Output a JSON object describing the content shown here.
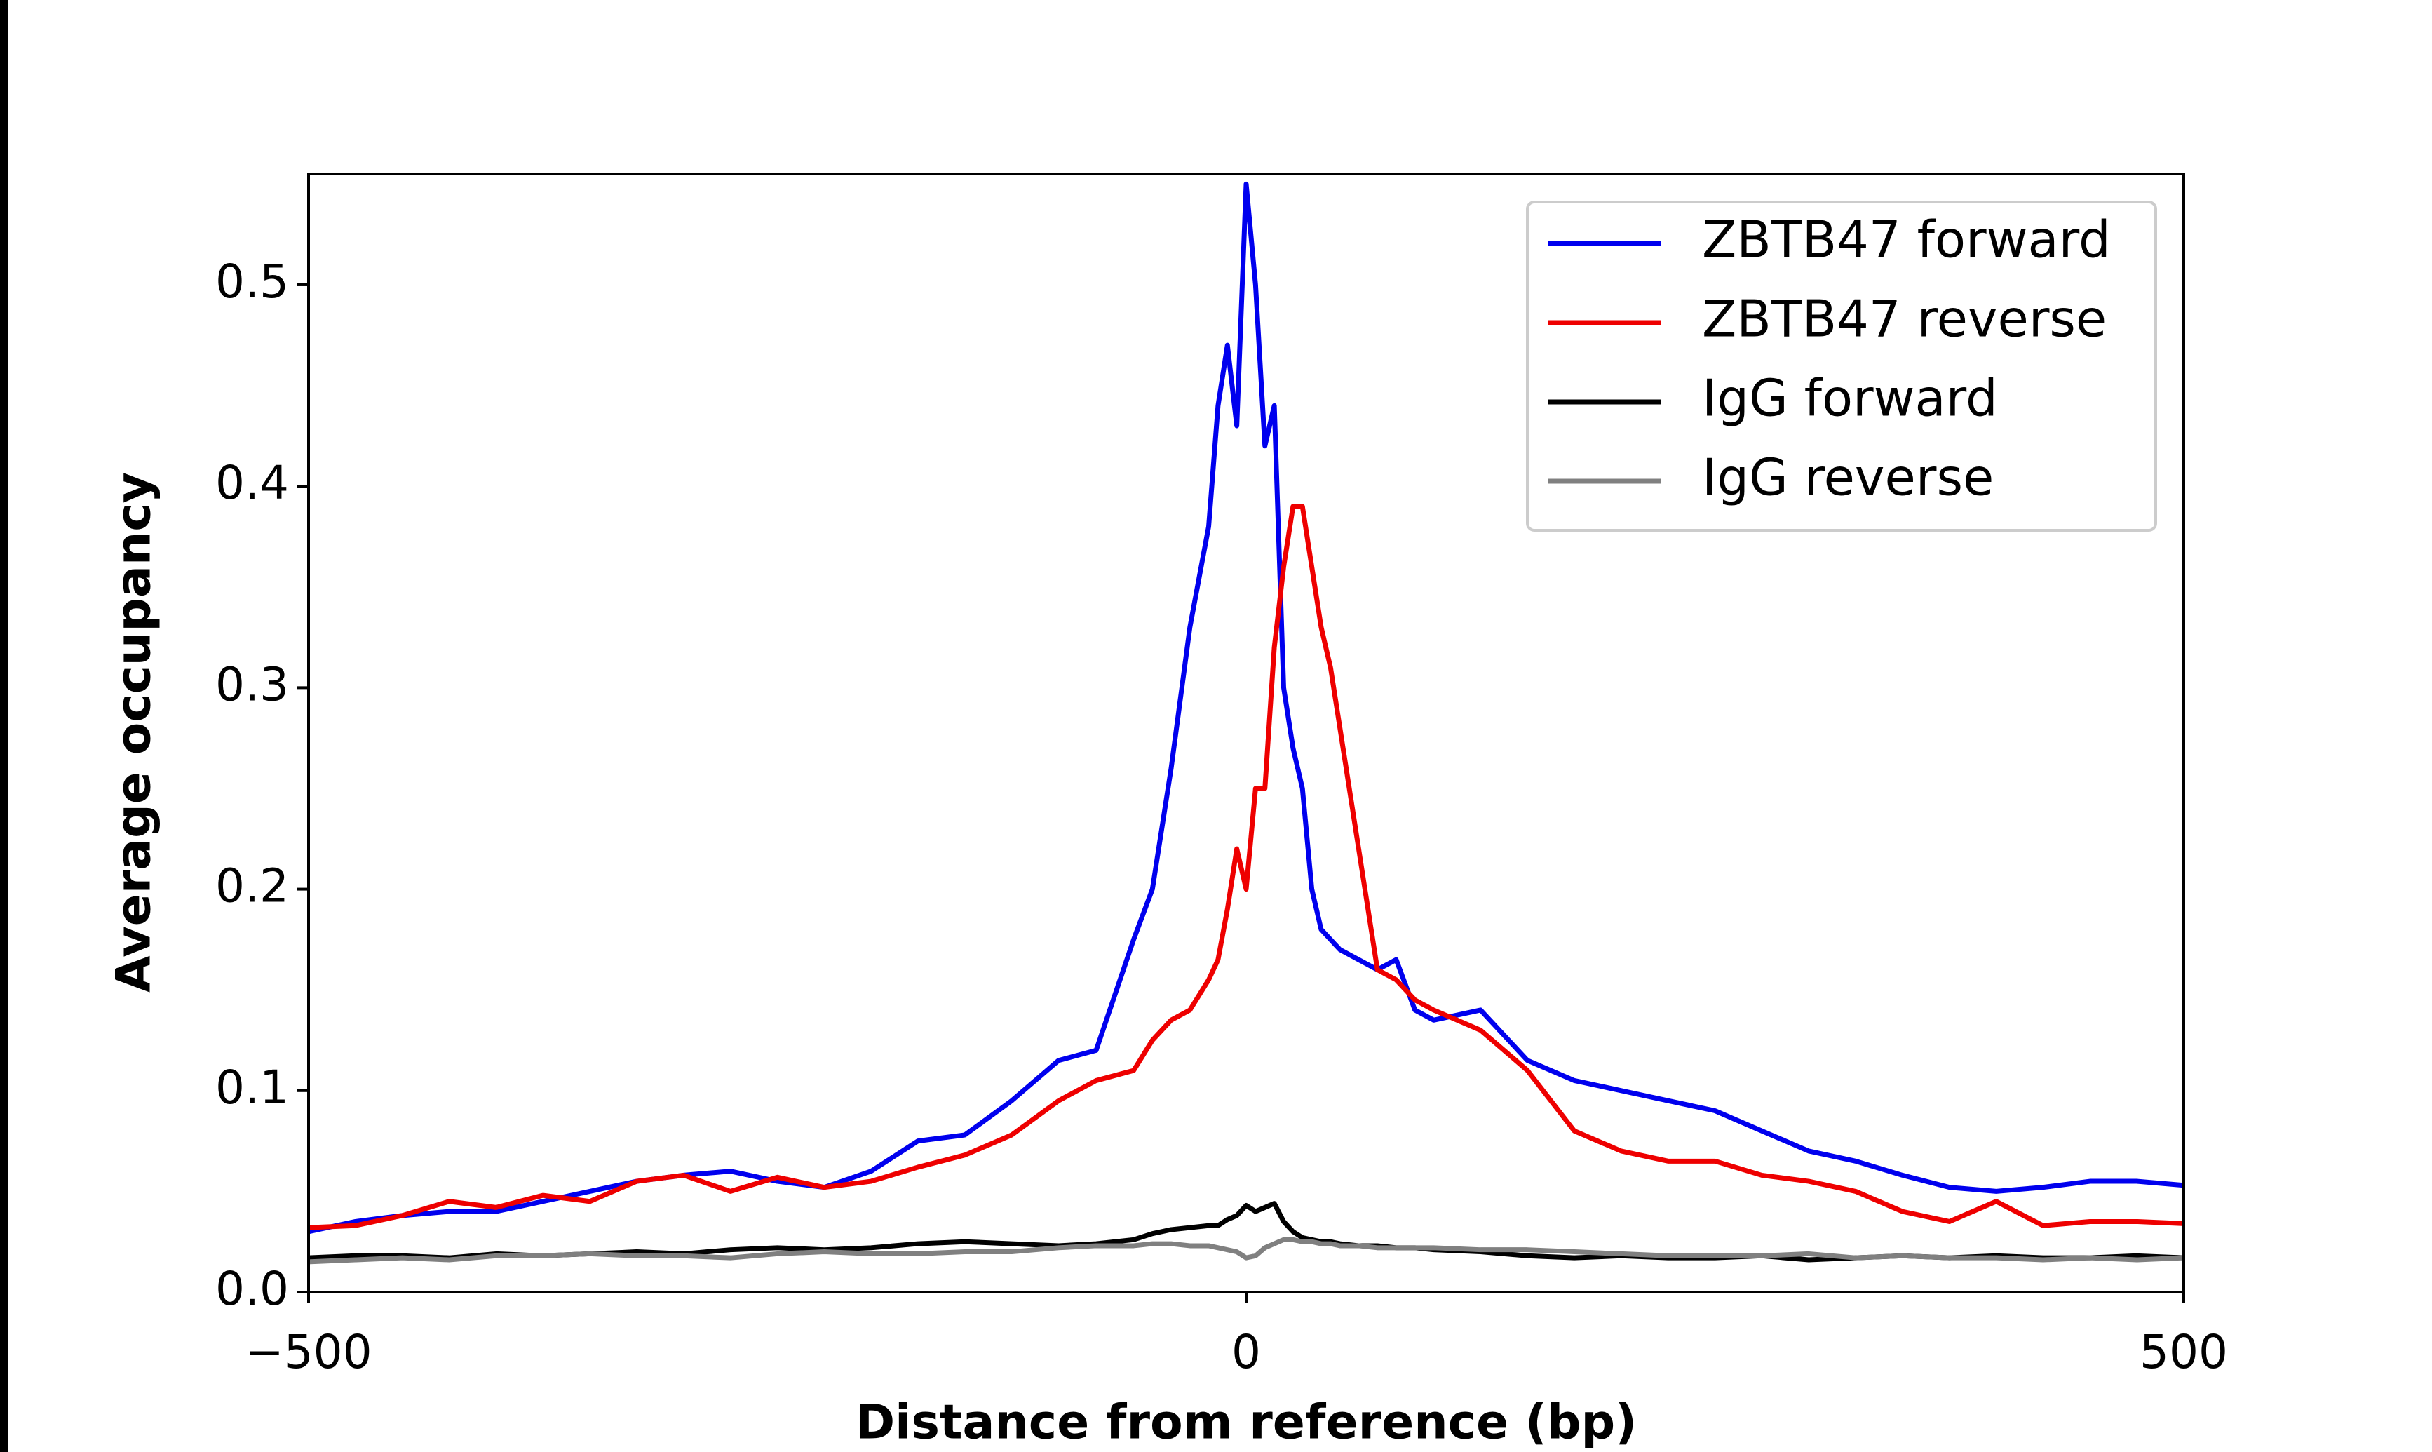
{
  "chart_data": {
    "type": "line",
    "xlabel": "Distance from reference (bp)",
    "ylabel": "Average occupancy",
    "xlim": [
      -500,
      500
    ],
    "ylim": [
      0,
      0.555
    ],
    "xticks": [
      {
        "value": -500,
        "label": "−500"
      },
      0,
      500
    ],
    "yticks": [
      {
        "value": 0,
        "label": "0.0"
      },
      0.1,
      0.2,
      0.3,
      0.4,
      0.5
    ],
    "grid": false,
    "legend": "upper right",
    "x": [
      -500,
      -475,
      -450,
      -425,
      -400,
      -375,
      -350,
      -325,
      -300,
      -275,
      -250,
      -225,
      -200,
      -175,
      -150,
      -125,
      -100,
      -80,
      -60,
      -50,
      -40,
      -30,
      -20,
      -15,
      -10,
      -5,
      0,
      5,
      10,
      15,
      20,
      25,
      30,
      35,
      40,
      45,
      50,
      60,
      70,
      80,
      90,
      100,
      125,
      150,
      175,
      200,
      225,
      250,
      275,
      300,
      325,
      350,
      375,
      400,
      425,
      450,
      475,
      500
    ],
    "series": [
      {
        "name": "ZBTB47 forward",
        "color": "#0000ee",
        "values": [
          0.03,
          0.035,
          0.038,
          0.04,
          0.04,
          0.045,
          0.05,
          0.055,
          0.058,
          0.06,
          0.055,
          0.052,
          0.06,
          0.075,
          0.078,
          0.095,
          0.115,
          0.12,
          0.175,
          0.2,
          0.26,
          0.33,
          0.38,
          0.44,
          0.47,
          0.43,
          0.55,
          0.5,
          0.42,
          0.44,
          0.3,
          0.27,
          0.25,
          0.2,
          0.18,
          0.175,
          0.17,
          0.165,
          0.16,
          0.165,
          0.14,
          0.135,
          0.14,
          0.115,
          0.105,
          0.1,
          0.095,
          0.09,
          0.08,
          0.07,
          0.065,
          0.058,
          0.052,
          0.05,
          0.052,
          0.055,
          0.055,
          0.053
        ]
      },
      {
        "name": "ZBTB47 reverse",
        "color": "#ee0000",
        "values": [
          0.032,
          0.033,
          0.038,
          0.045,
          0.042,
          0.048,
          0.045,
          0.055,
          0.058,
          0.05,
          0.057,
          0.052,
          0.055,
          0.062,
          0.068,
          0.078,
          0.095,
          0.105,
          0.11,
          0.125,
          0.135,
          0.14,
          0.155,
          0.165,
          0.19,
          0.22,
          0.2,
          0.25,
          0.25,
          0.32,
          0.36,
          0.39,
          0.39,
          0.36,
          0.33,
          0.31,
          0.28,
          0.22,
          0.16,
          0.155,
          0.145,
          0.14,
          0.13,
          0.11,
          0.08,
          0.07,
          0.065,
          0.065,
          0.058,
          0.055,
          0.05,
          0.04,
          0.035,
          0.045,
          0.033,
          0.035,
          0.035,
          0.034
        ]
      },
      {
        "name": "IgG forward",
        "color": "#000000",
        "values": [
          0.017,
          0.018,
          0.018,
          0.017,
          0.019,
          0.018,
          0.019,
          0.02,
          0.019,
          0.021,
          0.022,
          0.021,
          0.022,
          0.024,
          0.025,
          0.024,
          0.023,
          0.024,
          0.026,
          0.029,
          0.031,
          0.032,
          0.033,
          0.033,
          0.036,
          0.038,
          0.043,
          0.04,
          0.042,
          0.044,
          0.035,
          0.03,
          0.027,
          0.026,
          0.025,
          0.025,
          0.024,
          0.023,
          0.023,
          0.022,
          0.022,
          0.021,
          0.02,
          0.018,
          0.017,
          0.018,
          0.017,
          0.017,
          0.018,
          0.016,
          0.017,
          0.018,
          0.017,
          0.018,
          0.017,
          0.017,
          0.018,
          0.017
        ]
      },
      {
        "name": "IgG reverse",
        "color": "#808080",
        "values": [
          0.015,
          0.016,
          0.017,
          0.016,
          0.018,
          0.018,
          0.019,
          0.018,
          0.018,
          0.017,
          0.019,
          0.02,
          0.019,
          0.019,
          0.02,
          0.02,
          0.022,
          0.023,
          0.023,
          0.024,
          0.024,
          0.023,
          0.023,
          0.022,
          0.021,
          0.02,
          0.017,
          0.018,
          0.022,
          0.024,
          0.026,
          0.026,
          0.025,
          0.025,
          0.024,
          0.024,
          0.023,
          0.023,
          0.022,
          0.022,
          0.022,
          0.022,
          0.021,
          0.021,
          0.02,
          0.019,
          0.018,
          0.018,
          0.018,
          0.019,
          0.017,
          0.018,
          0.017,
          0.017,
          0.016,
          0.017,
          0.016,
          0.017
        ]
      }
    ]
  }
}
